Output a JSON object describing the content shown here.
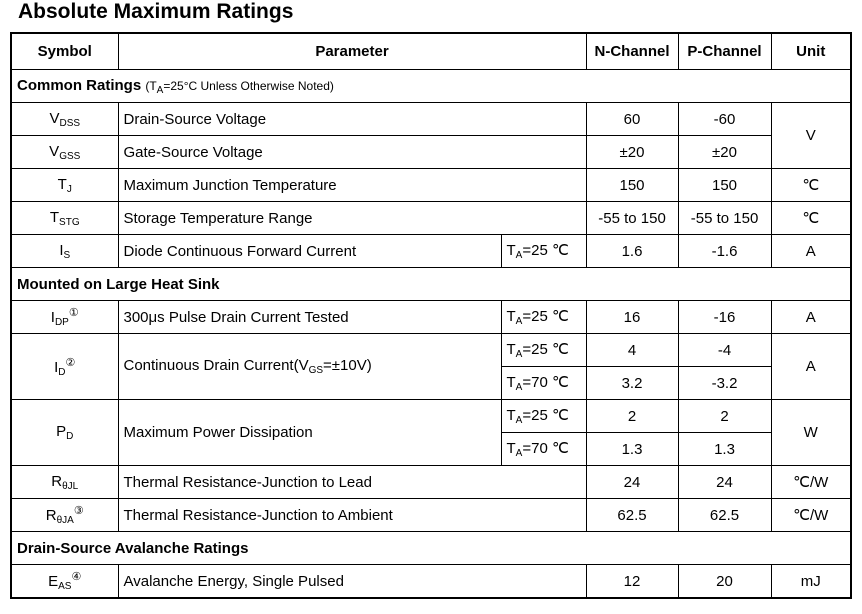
{
  "title": "Absolute Maximum Ratings",
  "table": {
    "header": [
      "Symbol",
      "Parameter",
      "N-Channel",
      "P-Channel",
      "Unit"
    ],
    "sections": [
      {
        "title": "Common Ratings",
        "note": {
          "t": "(T",
          "sub": "A",
          "post": "=25°C Unless Otherwise Noted)"
        },
        "rows": [
          {
            "symbol": {
              "t": "V",
              "sub": "DSS"
            },
            "parameter": "Drain-Source Voltage",
            "n": "60",
            "p": "-60",
            "unit": "V"
          },
          {
            "symbol": {
              "t": "V",
              "sub": "GSS"
            },
            "parameter": "Gate-Source Voltage",
            "n": "±20",
            "p": "±20"
          },
          {
            "symbol": {
              "t": "T",
              "sub": "J"
            },
            "parameter": "Maximum Junction Temperature",
            "n": "150",
            "p": "150",
            "unit": "℃"
          },
          {
            "symbol": {
              "t": "T",
              "sub": "STG"
            },
            "parameter": "Storage Temperature Range",
            "n": "-55 to 150",
            "p": "-55 to 150",
            "unit": "℃"
          },
          {
            "symbol": {
              "t": "I",
              "sub": "S"
            },
            "parameter": "Diode Continuous Forward Current",
            "conditions": [
              {
                "cond": {
                  "t": "T",
                  "sub": "A",
                  "post": "=25 ℃"
                },
                "n": "1.6",
                "p": "-1.6"
              }
            ],
            "unit": "A"
          }
        ]
      },
      {
        "title": "Mounted on Large Heat Sink",
        "rows": [
          {
            "symbol": {
              "t": "I",
              "sub": "DP",
              "sup": "①"
            },
            "parameter": "300μs Pulse Drain Current Tested",
            "conditions": [
              {
                "cond": {
                  "t": "T",
                  "sub": "A",
                  "post": "=25 ℃"
                },
                "n": "16",
                "p": "-16"
              }
            ],
            "unit": "A"
          },
          {
            "symbol": {
              "t": "I",
              "sub": "D",
              "sup": "②"
            },
            "parameter": {
              "t": "Continuous Drain Current(V",
              "sub": "GS",
              "post": "=±10V)"
            },
            "conditions": [
              {
                "cond": {
                  "t": "T",
                  "sub": "A",
                  "post": "=25 ℃"
                },
                "n": "4",
                "p": "-4"
              },
              {
                "cond": {
                  "t": "T",
                  "sub": "A",
                  "post": "=70 ℃"
                },
                "n": "3.2",
                "p": "-3.2"
              }
            ],
            "unit": "A"
          },
          {
            "symbol": {
              "t": "P",
              "sub": "D"
            },
            "parameter": "Maximum Power Dissipation",
            "conditions": [
              {
                "cond": {
                  "t": "T",
                  "sub": "A",
                  "post": "=25 ℃"
                },
                "n": "2",
                "p": "2"
              },
              {
                "cond": {
                  "t": "T",
                  "sub": "A",
                  "post": "=70 ℃"
                },
                "n": "1.3",
                "p": "1.3"
              }
            ],
            "unit": "W"
          },
          {
            "symbol": {
              "t": "R",
              "sub": "θJL"
            },
            "parameter": "Thermal Resistance-Junction to Lead",
            "n": "24",
            "p": "24",
            "unit": "℃/W"
          },
          {
            "symbol": {
              "t": "R",
              "sub": "θJA",
              "sup": "③"
            },
            "parameter": "Thermal Resistance-Junction to Ambient",
            "n": "62.5",
            "p": "62.5",
            "unit": "℃/W"
          }
        ]
      },
      {
        "title": "Drain-Source Avalanche Ratings",
        "rows": [
          {
            "symbol": {
              "t": "E",
              "sub": "AS",
              "sup": "④"
            },
            "parameter": "Avalanche Energy, Single Pulsed",
            "n": "12",
            "p": "20",
            "unit": "mJ"
          }
        ]
      }
    ]
  }
}
